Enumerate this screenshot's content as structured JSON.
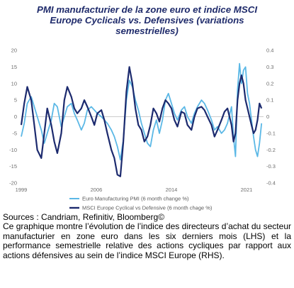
{
  "title_lines": [
    "PMI manufacturier de la zone euro et indice MSCI",
    "Europe Cyclicals vs. Defensives (variations",
    "semestrielles)"
  ],
  "sources": "Sources : Candriam, Refinitiv, Bloomberg©",
  "description": "Ce graphique montre l’évolution de l’indice des directeurs d’achat du secteur manufacturier en zone euro dans les six derniers mois (LHS) et la performance semestrielle relative des actions cycliques par rapport aux actions défensives au sein de l’indice MSCI Europe (RHS).",
  "colors": {
    "pmi": "#5bb8e6",
    "msci": "#1c2a6e",
    "title": "#1f2b6b"
  },
  "chart_data": {
    "type": "line",
    "x_ticks": [
      "1999",
      "2006",
      "2014",
      "2021"
    ],
    "x_tick_years": [
      1999,
      2006.5,
      2014,
      2021.5
    ],
    "xlim": [
      1999,
      2023.2
    ],
    "left_axis": {
      "ticks": [
        "20",
        "15",
        "10",
        "5",
        "0",
        "-5",
        "-10",
        "-15",
        "-20"
      ],
      "ylim": [
        -20,
        20
      ]
    },
    "right_axis": {
      "ticks": [
        "0.4",
        "0.3",
        "0.2",
        "0.1",
        "0",
        "-0.1",
        "-0.2",
        "-0.3",
        "-0.4"
      ],
      "ylim": [
        -0.4,
        0.4
      ]
    },
    "grid": false,
    "legend_position": "bottom",
    "series": [
      {
        "name": "Euro Manufacturing PMI (6 month change %)",
        "axis": "left",
        "x": [
          1999.0,
          1999.3,
          1999.6,
          2000.0,
          2000.3,
          2000.6,
          2001.0,
          2001.3,
          2001.6,
          2002.0,
          2002.3,
          2002.6,
          2003.0,
          2003.3,
          2003.6,
          2004.0,
          2004.3,
          2004.6,
          2005.0,
          2005.3,
          2005.6,
          2006.0,
          2006.3,
          2006.6,
          2007.0,
          2007.3,
          2007.6,
          2008.0,
          2008.3,
          2008.6,
          2008.9,
          2009.2,
          2009.5,
          2009.8,
          2010.1,
          2010.4,
          2010.7,
          2011.0,
          2011.3,
          2011.6,
          2011.9,
          2012.2,
          2012.5,
          2012.8,
          2013.1,
          2013.4,
          2013.7,
          2014.0,
          2014.3,
          2014.6,
          2015.0,
          2015.3,
          2015.6,
          2016.0,
          2016.3,
          2016.6,
          2017.0,
          2017.3,
          2017.6,
          2018.0,
          2018.3,
          2018.6,
          2019.0,
          2019.3,
          2019.6,
          2020.0,
          2020.2,
          2020.4,
          2020.6,
          2020.8,
          2021.0,
          2021.2,
          2021.4,
          2021.6,
          2021.8,
          2022.0,
          2022.2,
          2022.4,
          2022.6,
          2022.8,
          2023.0
        ],
        "values": [
          -6,
          -2,
          4,
          6,
          3,
          0,
          -4,
          -8,
          -5,
          -1,
          4,
          3,
          -3,
          0,
          3,
          4,
          1,
          -1,
          -4,
          -2,
          2,
          3,
          2,
          1,
          0,
          -1,
          -2,
          -4,
          -6,
          -9,
          -13,
          -7,
          5,
          11,
          9,
          5,
          2,
          -2,
          -5,
          -8,
          -9,
          -4,
          -1,
          -5,
          -1,
          5,
          7,
          4,
          1,
          -1,
          2,
          3,
          0,
          -2,
          1,
          3,
          5,
          4,
          2,
          -1,
          -4,
          -3,
          -5,
          -4,
          -2,
          3,
          -6,
          -12,
          8,
          16,
          10,
          14,
          15,
          7,
          4,
          -1,
          -6,
          -10,
          -12,
          -8,
          -2
        ]
      },
      {
        "name": "MSCI Europe Cyclical vs Defensive (6 month chage %)",
        "axis": "right",
        "x": [
          1999.0,
          1999.3,
          1999.6,
          2000.0,
          2000.3,
          2000.6,
          2001.0,
          2001.3,
          2001.6,
          2002.0,
          2002.3,
          2002.6,
          2003.0,
          2003.3,
          2003.6,
          2004.0,
          2004.3,
          2004.6,
          2005.0,
          2005.3,
          2005.6,
          2006.0,
          2006.3,
          2006.6,
          2007.0,
          2007.3,
          2007.6,
          2008.0,
          2008.3,
          2008.6,
          2008.9,
          2009.2,
          2009.5,
          2009.8,
          2010.1,
          2010.4,
          2010.7,
          2011.0,
          2011.3,
          2011.6,
          2011.9,
          2012.2,
          2012.5,
          2012.8,
          2013.1,
          2013.4,
          2013.7,
          2014.0,
          2014.3,
          2014.6,
          2015.0,
          2015.3,
          2015.6,
          2016.0,
          2016.3,
          2016.6,
          2017.0,
          2017.3,
          2017.6,
          2018.0,
          2018.3,
          2018.6,
          2019.0,
          2019.3,
          2019.6,
          2020.0,
          2020.2,
          2020.4,
          2020.6,
          2020.8,
          2021.0,
          2021.2,
          2021.4,
          2021.6,
          2021.8,
          2022.0,
          2022.2,
          2022.4,
          2022.6,
          2022.8,
          2023.0
        ],
        "values": [
          -0.05,
          0.08,
          0.18,
          0.1,
          -0.05,
          -0.2,
          -0.25,
          -0.1,
          0.05,
          -0.05,
          -0.15,
          -0.22,
          -0.1,
          0.1,
          0.18,
          0.12,
          0.05,
          0.02,
          0.05,
          0.1,
          0.06,
          0.0,
          -0.05,
          0.02,
          0.04,
          -0.02,
          -0.1,
          -0.2,
          -0.25,
          -0.35,
          -0.36,
          -0.15,
          0.15,
          0.3,
          0.2,
          0.05,
          -0.05,
          -0.08,
          -0.15,
          -0.12,
          -0.05,
          0.05,
          0.02,
          -0.03,
          0.05,
          0.1,
          0.08,
          0.05,
          -0.02,
          -0.06,
          0.03,
          0.02,
          -0.05,
          -0.08,
          0.0,
          0.05,
          0.06,
          0.04,
          0.0,
          -0.05,
          -0.12,
          -0.08,
          -0.02,
          0.03,
          0.05,
          -0.05,
          -0.15,
          -0.1,
          0.1,
          0.2,
          0.25,
          0.2,
          0.1,
          0.05,
          0.0,
          -0.05,
          -0.1,
          -0.08,
          -0.02,
          0.08,
          0.05
        ]
      }
    ]
  }
}
